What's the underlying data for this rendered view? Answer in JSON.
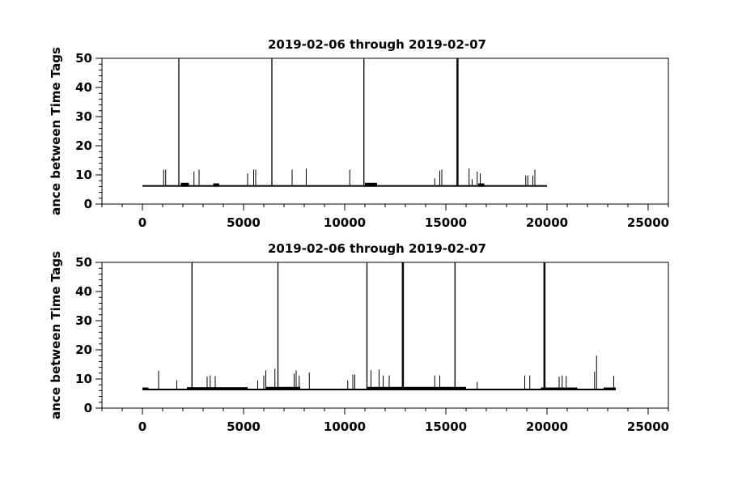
{
  "chart_data": [
    {
      "type": "line",
      "title": "2019-02-06 through 2019-02-07",
      "ylabel": "ance between Time Tags",
      "xlabel": "",
      "xlim": [
        -2000,
        26000
      ],
      "ylim": [
        0,
        50
      ],
      "xticks": [
        0,
        5000,
        10000,
        15000,
        20000,
        25000
      ],
      "yticks": [
        0,
        10,
        20,
        30,
        40,
        50
      ],
      "grid": false,
      "color": "#000000",
      "series": [
        {
          "x_start": 0,
          "x_end": 20000,
          "baseline": 6.2,
          "baseline_segments": [
            {
              "x0": 1900,
              "x1": 2300,
              "y": 7.0
            },
            {
              "x0": 3500,
              "x1": 3800,
              "y": 6.8
            },
            {
              "x0": 11000,
              "x1": 11600,
              "y": 7.0
            },
            {
              "x0": 16600,
              "x1": 16900,
              "y": 6.8
            }
          ],
          "spikes": [
            {
              "x": 1050,
              "y": 11.8
            },
            {
              "x": 1150,
              "y": 11.8
            },
            {
              "x": 1800,
              "y": 50
            },
            {
              "x": 2550,
              "y": 11.2
            },
            {
              "x": 2800,
              "y": 11.8
            },
            {
              "x": 5200,
              "y": 10.5
            },
            {
              "x": 5500,
              "y": 11.8
            },
            {
              "x": 5600,
              "y": 11.8
            },
            {
              "x": 6400,
              "y": 50
            },
            {
              "x": 7400,
              "y": 11.8
            },
            {
              "x": 8100,
              "y": 12.2
            },
            {
              "x": 10250,
              "y": 11.8
            },
            {
              "x": 10950,
              "y": 50
            },
            {
              "x": 14450,
              "y": 8.8
            },
            {
              "x": 14700,
              "y": 11.5
            },
            {
              "x": 14800,
              "y": 11.8
            },
            {
              "x": 15550,
              "y": 50
            },
            {
              "x": 15600,
              "y": 50
            },
            {
              "x": 16150,
              "y": 12.2
            },
            {
              "x": 16300,
              "y": 8.5
            },
            {
              "x": 16550,
              "y": 11.2
            },
            {
              "x": 16700,
              "y": 10.5
            },
            {
              "x": 18950,
              "y": 9.8
            },
            {
              "x": 19050,
              "y": 9.8
            },
            {
              "x": 19300,
              "y": 9.8
            },
            {
              "x": 19400,
              "y": 11.8
            }
          ]
        }
      ]
    },
    {
      "type": "line",
      "title": "2019-02-06 through 2019-02-07",
      "ylabel": "ance between Time Tags",
      "xlabel": "",
      "xlim": [
        -2000,
        26000
      ],
      "ylim": [
        0,
        50
      ],
      "xticks": [
        0,
        5000,
        10000,
        15000,
        20000,
        25000
      ],
      "yticks": [
        0,
        10,
        20,
        30,
        40,
        50
      ],
      "grid": false,
      "color": "#000000",
      "series": [
        {
          "x_start": 0,
          "x_end": 23400,
          "baseline": 6.4,
          "baseline_segments": [
            {
              "x0": 0,
              "x1": 300,
              "y": 6.8
            },
            {
              "x0": 2200,
              "x1": 5200,
              "y": 6.9
            },
            {
              "x0": 6100,
              "x1": 7800,
              "y": 7.0
            },
            {
              "x0": 11100,
              "x1": 16000,
              "y": 7.0
            },
            {
              "x0": 19700,
              "x1": 21500,
              "y": 6.8
            },
            {
              "x0": 22800,
              "x1": 23400,
              "y": 6.8
            }
          ],
          "spikes": [
            {
              "x": 800,
              "y": 12.8
            },
            {
              "x": 1700,
              "y": 9.5
            },
            {
              "x": 2450,
              "y": 50
            },
            {
              "x": 3200,
              "y": 10.8
            },
            {
              "x": 3350,
              "y": 11.2
            },
            {
              "x": 3600,
              "y": 11.0
            },
            {
              "x": 5700,
              "y": 9.5
            },
            {
              "x": 6000,
              "y": 11.2
            },
            {
              "x": 6100,
              "y": 13.0
            },
            {
              "x": 6550,
              "y": 13.5
            },
            {
              "x": 6700,
              "y": 50
            },
            {
              "x": 7500,
              "y": 11.8
            },
            {
              "x": 7600,
              "y": 13.0
            },
            {
              "x": 7750,
              "y": 11.2
            },
            {
              "x": 8250,
              "y": 12.2
            },
            {
              "x": 10150,
              "y": 9.5
            },
            {
              "x": 10400,
              "y": 11.5
            },
            {
              "x": 10500,
              "y": 11.5
            },
            {
              "x": 11100,
              "y": 50
            },
            {
              "x": 11300,
              "y": 13.0
            },
            {
              "x": 11700,
              "y": 13.2
            },
            {
              "x": 11900,
              "y": 11.2
            },
            {
              "x": 12200,
              "y": 11.2
            },
            {
              "x": 12850,
              "y": 50
            },
            {
              "x": 12900,
              "y": 50
            },
            {
              "x": 14450,
              "y": 11.2
            },
            {
              "x": 14700,
              "y": 11.2
            },
            {
              "x": 15450,
              "y": 50
            },
            {
              "x": 16550,
              "y": 9.0
            },
            {
              "x": 18900,
              "y": 11.2
            },
            {
              "x": 19150,
              "y": 11.2
            },
            {
              "x": 19850,
              "y": 50
            },
            {
              "x": 19900,
              "y": 50
            },
            {
              "x": 20600,
              "y": 10.8
            },
            {
              "x": 20750,
              "y": 11.2
            },
            {
              "x": 20950,
              "y": 11.0
            },
            {
              "x": 22350,
              "y": 12.5
            },
            {
              "x": 22450,
              "y": 18.0
            },
            {
              "x": 23300,
              "y": 11.0
            }
          ]
        }
      ]
    }
  ]
}
